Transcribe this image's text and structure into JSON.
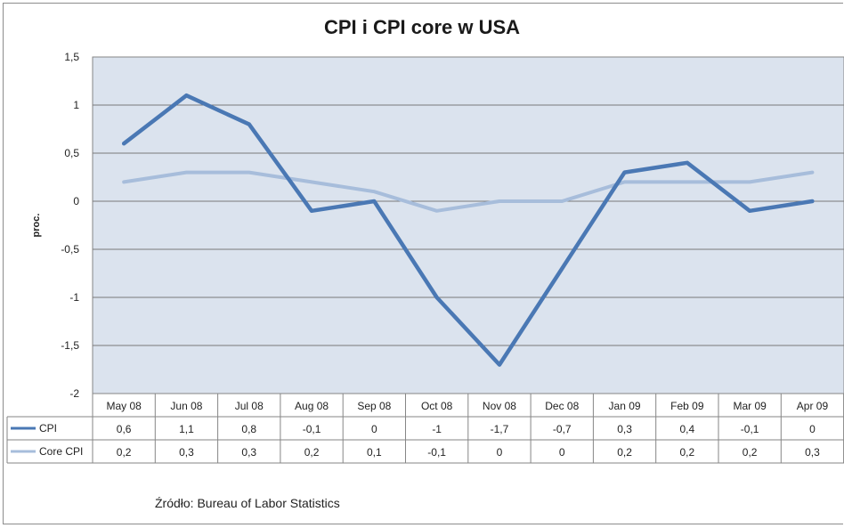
{
  "chart_data": {
    "type": "line",
    "title": "CPI i CPI core w USA",
    "ylabel": "proc.",
    "xlabel": "",
    "ylim": [
      -2,
      1.5
    ],
    "yticks": [
      1.5,
      1,
      0.5,
      0,
      -0.5,
      -1,
      -1.5,
      -2
    ],
    "ytick_labels": [
      "1,5",
      "1",
      "0,5",
      "0",
      "-0,5",
      "-1",
      "-1,5",
      "-2"
    ],
    "categories": [
      "May 08",
      "Jun 08",
      "Jul 08",
      "Aug 08",
      "Sep 08",
      "Oct 08",
      "Nov 08",
      "Dec 08",
      "Jan 09",
      "Feb 09",
      "Mar 09",
      "Apr 09"
    ],
    "series": [
      {
        "name": "CPI",
        "color": "#4a78b4",
        "values": [
          0.6,
          1.1,
          0.8,
          -0.1,
          0,
          -1,
          -1.7,
          -0.7,
          0.3,
          0.4,
          -0.1,
          0
        ],
        "labels": [
          "0,6",
          "1,1",
          "0,8",
          "-0,1",
          "0",
          "-1",
          "-1,7",
          "-0,7",
          "0,3",
          "0,4",
          "-0,1",
          "0"
        ]
      },
      {
        "name": "Core CPI",
        "color": "#a7bddb",
        "values": [
          0.2,
          0.3,
          0.3,
          0.2,
          0.1,
          -0.1,
          0,
          0,
          0.2,
          0.2,
          0.2,
          0.3
        ],
        "labels": [
          "0,2",
          "0,3",
          "0,3",
          "0,2",
          "0,1",
          "-0,1",
          "0",
          "0",
          "0,2",
          "0,2",
          "0,2",
          "0,3"
        ]
      }
    ],
    "grid": true,
    "legend": "data-table-below"
  },
  "source": "Źródło:  Bureau of Labor Statistics"
}
